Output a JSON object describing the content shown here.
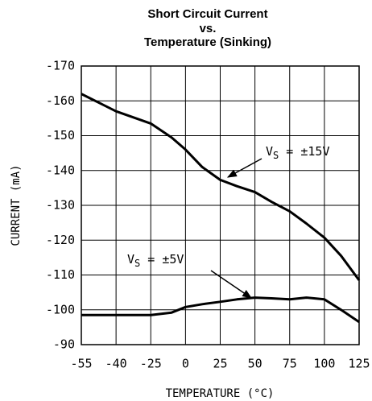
{
  "chart_data": {
    "type": "line",
    "title": [
      "Short Circuit Current",
      "vs.",
      "Temperature (Sinking)"
    ],
    "xlabel": "TEMPERATURE (°C)",
    "ylabel": "CURRENT (mA)",
    "xlim": [
      -55,
      125
    ],
    "xticks": [
      -55,
      -40,
      -25,
      0,
      25,
      50,
      75,
      100,
      125
    ],
    "ylim": [
      -90,
      -170
    ],
    "yticks": [
      -170,
      -160,
      -150,
      -140,
      -130,
      -120,
      -110,
      -100,
      -90
    ],
    "grid": true,
    "series": [
      {
        "name": "±15V",
        "color": "#000000",
        "x": [
          -55,
          -40,
          -25,
          -10,
          0,
          12,
          25,
          37,
          50,
          62,
          75,
          87,
          100,
          112,
          125
        ],
        "values": [
          -162,
          -157,
          -153.5,
          -149.5,
          -146,
          -141,
          -137.3,
          -135.5,
          -133.8,
          -131,
          -128.3,
          -124.8,
          -120.7,
          -115.5,
          -108.5
        ]
      },
      {
        "name": "±5V",
        "color": "#000000",
        "x": [
          -55,
          -40,
          -25,
          -10,
          0,
          12,
          25,
          37,
          50,
          62,
          75,
          87,
          100,
          112,
          125
        ],
        "values": [
          -98.5,
          -98.5,
          -98.5,
          -99.2,
          -100.8,
          -101.6,
          -102.3,
          -103,
          -103.5,
          -103.3,
          -103,
          -103.5,
          -103,
          -100,
          -96.5
        ]
      }
    ],
    "annotations": [
      {
        "text": "V",
        "sub": "S",
        "rest": " = ±15V"
      },
      {
        "text": "V",
        "sub": "S",
        "rest": " = ±5V"
      }
    ]
  }
}
